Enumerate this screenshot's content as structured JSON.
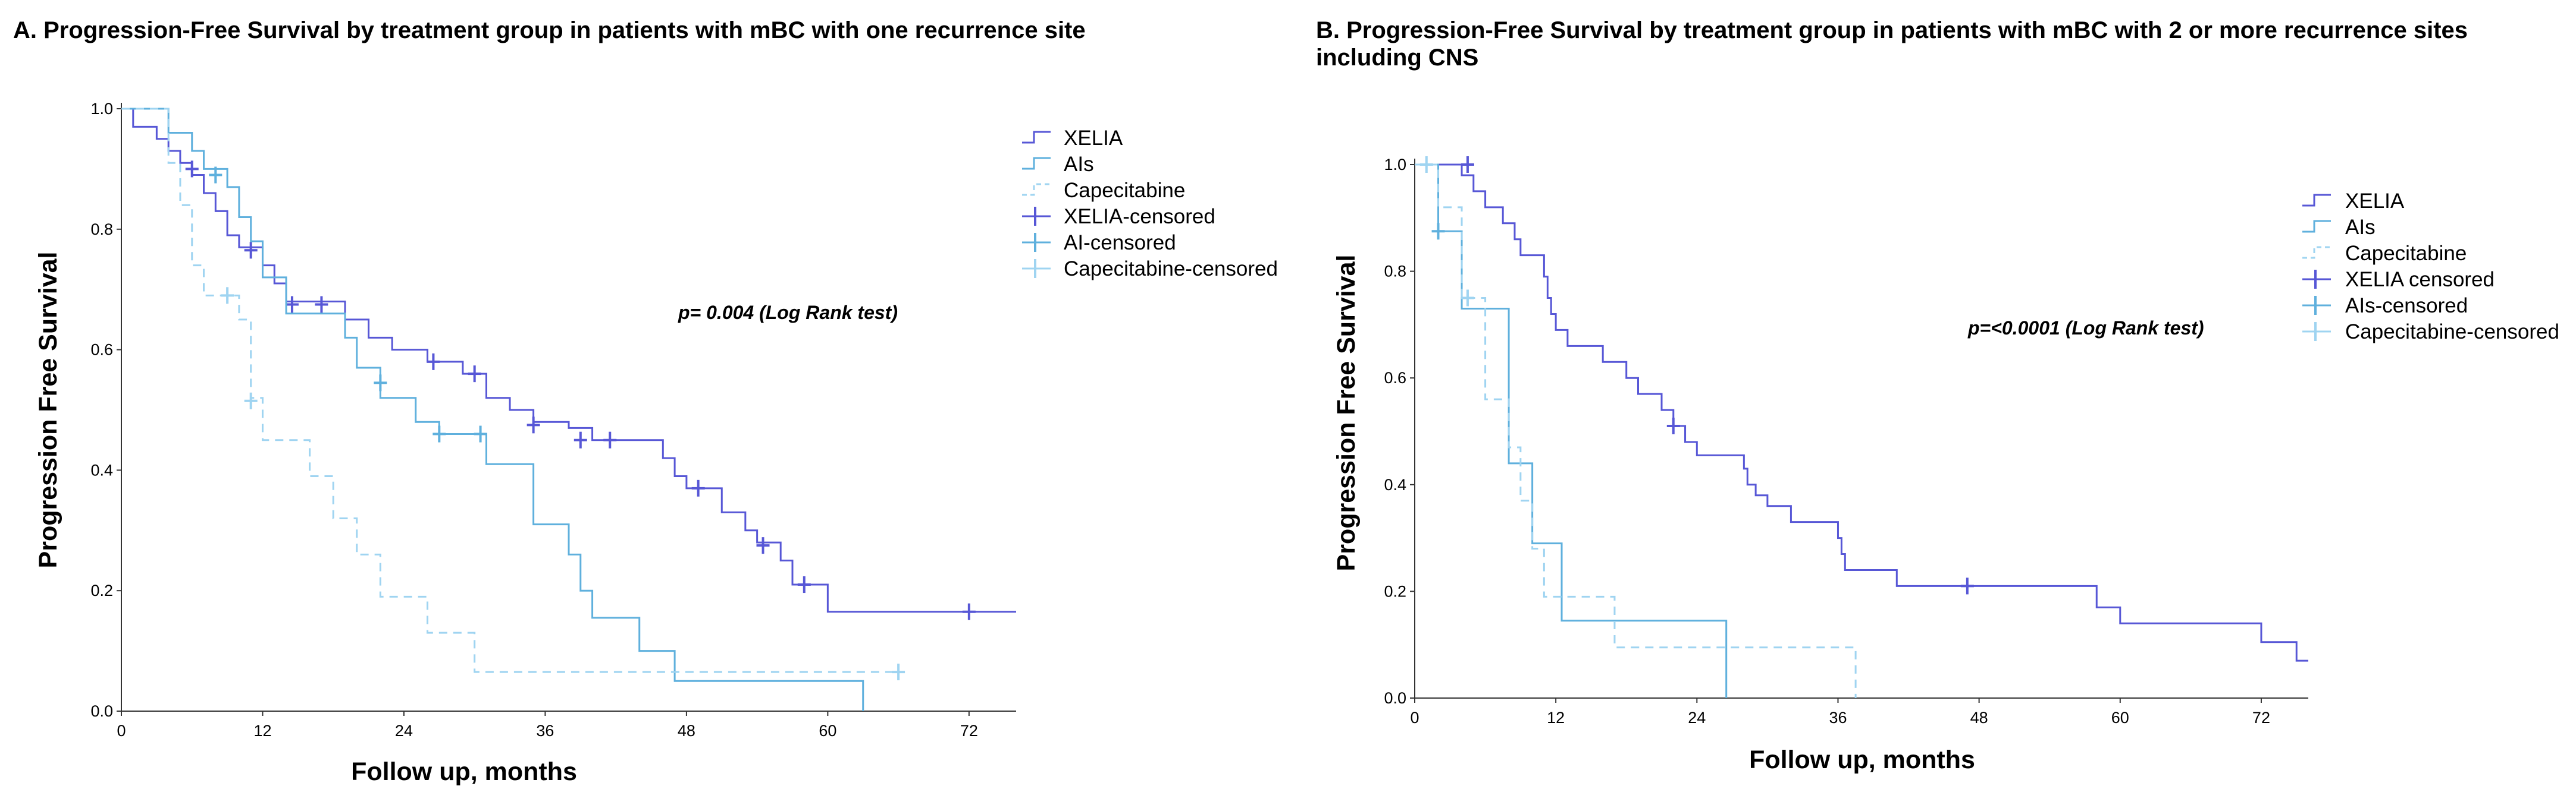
{
  "colors": {
    "xelia": "#5757d6",
    "ais": "#5fb0dd",
    "capecitabine": "#9fd4f1",
    "axis": "#333333"
  },
  "chart_data": [
    {
      "type": "line",
      "subtype": "kaplan-meier",
      "title": "A. Progression-Free Survival by treatment group in patients with mBC with one recurrence site",
      "xlabel": "Follow up, months",
      "ylabel": "Progression Free Survival",
      "xlim": [
        0,
        76
      ],
      "ylim": [
        0,
        1.0
      ],
      "xticks": [
        "0",
        "12",
        "24",
        "36",
        "48",
        "60",
        "72"
      ],
      "yticks": [
        "0.0",
        "0.2",
        "0.4",
        "0.6",
        "0.8",
        "1.0"
      ],
      "annotation": "p= 0.004 (Log Rank test)",
      "legend": [
        "XELIA",
        "AIs",
        "Capecitabine",
        "XELIA-censored",
        "AI-censored",
        "Capecitabine-censored"
      ],
      "series": [
        {
          "name": "XELIA",
          "steps": [
            [
              0,
              1.0
            ],
            [
              1,
              0.97
            ],
            [
              3,
              0.95
            ],
            [
              4,
              0.93
            ],
            [
              5,
              0.91
            ],
            [
              6,
              0.89
            ],
            [
              7,
              0.86
            ],
            [
              8,
              0.83
            ],
            [
              9,
              0.79
            ],
            [
              10,
              0.77
            ],
            [
              12,
              0.74
            ],
            [
              13,
              0.71
            ],
            [
              14,
              0.68
            ],
            [
              19,
              0.65
            ],
            [
              21,
              0.62
            ],
            [
              23,
              0.6
            ],
            [
              26,
              0.58
            ],
            [
              29,
              0.56
            ],
            [
              31,
              0.52
            ],
            [
              33,
              0.5
            ],
            [
              35,
              0.48
            ],
            [
              38,
              0.47
            ],
            [
              40,
              0.45
            ],
            [
              46,
              0.42
            ],
            [
              47,
              0.39
            ],
            [
              48,
              0.37
            ],
            [
              51,
              0.33
            ],
            [
              53,
              0.3
            ],
            [
              54,
              0.28
            ],
            [
              56,
              0.25
            ],
            [
              57,
              0.21
            ],
            [
              60,
              0.165
            ],
            [
              76,
              0.165
            ]
          ],
          "censored": [
            [
              6,
              0.9
            ],
            [
              11,
              0.765
            ],
            [
              14.5,
              0.675
            ],
            [
              17,
              0.675
            ],
            [
              26.5,
              0.58
            ],
            [
              30,
              0.56
            ],
            [
              35,
              0.475
            ],
            [
              39,
              0.45
            ],
            [
              41.5,
              0.45
            ],
            [
              49,
              0.37
            ],
            [
              54.5,
              0.275
            ],
            [
              58,
              0.21
            ],
            [
              72,
              0.165
            ]
          ]
        },
        {
          "name": "AIs",
          "steps": [
            [
              0,
              1.0
            ],
            [
              4,
              0.96
            ],
            [
              6,
              0.93
            ],
            [
              7,
              0.9
            ],
            [
              9,
              0.87
            ],
            [
              10,
              0.82
            ],
            [
              11,
              0.78
            ],
            [
              12,
              0.72
            ],
            [
              14,
              0.66
            ],
            [
              19,
              0.62
            ],
            [
              20,
              0.57
            ],
            [
              22,
              0.52
            ],
            [
              25,
              0.48
            ],
            [
              27,
              0.46
            ],
            [
              31,
              0.41
            ],
            [
              35,
              0.31
            ],
            [
              38,
              0.26
            ],
            [
              39,
              0.2
            ],
            [
              40,
              0.155
            ],
            [
              44,
              0.1
            ],
            [
              47,
              0.05
            ],
            [
              63,
              0.0
            ]
          ],
          "censored": [
            [
              8,
              0.89
            ],
            [
              22,
              0.545
            ],
            [
              27,
              0.46
            ],
            [
              30.5,
              0.46
            ]
          ]
        },
        {
          "name": "Capecitabine",
          "steps": [
            [
              0,
              1.0
            ],
            [
              4,
              0.91
            ],
            [
              5,
              0.84
            ],
            [
              6,
              0.74
            ],
            [
              7,
              0.69
            ],
            [
              10,
              0.65
            ],
            [
              11,
              0.52
            ],
            [
              12,
              0.45
            ],
            [
              16,
              0.39
            ],
            [
              18,
              0.32
            ],
            [
              20,
              0.26
            ],
            [
              22,
              0.19
            ],
            [
              26,
              0.13
            ],
            [
              30,
              0.065
            ],
            [
              66,
              0.065
            ]
          ],
          "censored": [
            [
              9,
              0.69
            ],
            [
              11,
              0.515
            ],
            [
              66,
              0.065
            ]
          ]
        }
      ]
    },
    {
      "type": "line",
      "subtype": "kaplan-meier",
      "title": "B. Progression-Free Survival by treatment group in patients with mBC with 2 or more recurrence sites including CNS",
      "xlabel": "Follow up, months",
      "ylabel": "Progression Free Survival",
      "xlim": [
        0,
        76
      ],
      "ylim": [
        0,
        1.0
      ],
      "xticks": [
        "0",
        "12",
        "24",
        "36",
        "48",
        "60",
        "72"
      ],
      "yticks": [
        "0.0",
        "0.2",
        "0.4",
        "0.6",
        "0.8",
        "1.0"
      ],
      "annotation": "p=<0.0001 (Log Rank test)",
      "legend": [
        "XELIA",
        "AIs",
        "Capecitabine",
        "XELIA censored",
        "AIs-censored",
        "Capecitabine-censored"
      ],
      "series": [
        {
          "name": "XELIA",
          "steps": [
            [
              0,
              1.0
            ],
            [
              4,
              0.98
            ],
            [
              5,
              0.95
            ],
            [
              6,
              0.92
            ],
            [
              7.5,
              0.89
            ],
            [
              8.5,
              0.86
            ],
            [
              9,
              0.83
            ],
            [
              11,
              0.79
            ],
            [
              11.3,
              0.75
            ],
            [
              11.6,
              0.72
            ],
            [
              12,
              0.69
            ],
            [
              13,
              0.66
            ],
            [
              16,
              0.63
            ],
            [
              18,
              0.6
            ],
            [
              19,
              0.57
            ],
            [
              21,
              0.54
            ],
            [
              22,
              0.51
            ],
            [
              23,
              0.48
            ],
            [
              24,
              0.455
            ],
            [
              28,
              0.43
            ],
            [
              28.3,
              0.4
            ],
            [
              29,
              0.38
            ],
            [
              30,
              0.36
            ],
            [
              32,
              0.33
            ],
            [
              36,
              0.3
            ],
            [
              36.3,
              0.27
            ],
            [
              36.6,
              0.24
            ],
            [
              41,
              0.21
            ],
            [
              58,
              0.17
            ],
            [
              60,
              0.14
            ],
            [
              72,
              0.105
            ],
            [
              75,
              0.07
            ],
            [
              76,
              0.07
            ]
          ],
          "censored": [
            [
              4.5,
              1.0
            ],
            [
              22,
              0.51
            ],
            [
              47,
              0.21
            ]
          ]
        },
        {
          "name": "AIs",
          "steps": [
            [
              0,
              1.0
            ],
            [
              2,
              0.875
            ],
            [
              4,
              0.73
            ],
            [
              8,
              0.44
            ],
            [
              10,
              0.29
            ],
            [
              12.5,
              0.145
            ],
            [
              26.5,
              0.145
            ],
            [
              26.5,
              0.0
            ]
          ],
          "censored": [
            [
              2,
              0.875
            ]
          ]
        },
        {
          "name": "Capecitabine",
          "steps": [
            [
              0,
              1.0
            ],
            [
              2,
              0.92
            ],
            [
              4,
              0.75
            ],
            [
              6,
              0.56
            ],
            [
              8,
              0.47
            ],
            [
              9,
              0.37
            ],
            [
              10,
              0.28
            ],
            [
              11,
              0.19
            ],
            [
              17,
              0.095
            ],
            [
              37.5,
              0.095
            ],
            [
              37.5,
              0.0
            ]
          ],
          "censored": [
            [
              1,
              1.0
            ],
            [
              4.5,
              0.75
            ]
          ]
        }
      ]
    }
  ]
}
